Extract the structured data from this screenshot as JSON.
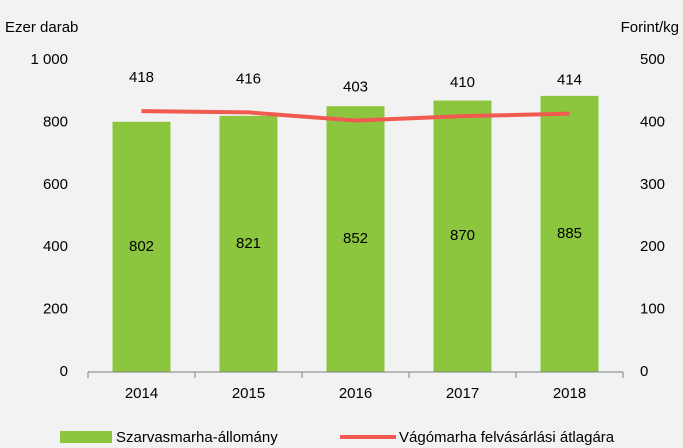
{
  "chart_data": {
    "type": "bar",
    "categories": [
      "2014",
      "2015",
      "2016",
      "2017",
      "2018"
    ],
    "ylabel": "Ezer darab",
    "y2label": "Forint/kg",
    "series": [
      {
        "name": "Szarvasmarha-állomány",
        "type": "bar",
        "color": "#8cc63f",
        "values": [
          802,
          821,
          852,
          870,
          885
        ]
      },
      {
        "name": "Vágómarha felvásárlási átlagára",
        "type": "line",
        "axis": "y2",
        "color": "#f15a50",
        "values": [
          418,
          416,
          403,
          410,
          414
        ]
      }
    ],
    "ylim": [
      0,
      1000
    ],
    "yticks": [
      0,
      200,
      400,
      600,
      800,
      {
        "value": 1000,
        "label": "1 000"
      }
    ],
    "y2lim": [
      0,
      500
    ],
    "y2ticks": [
      0,
      100,
      200,
      300,
      400,
      500
    ],
    "grid": false,
    "legend": "bottom"
  }
}
